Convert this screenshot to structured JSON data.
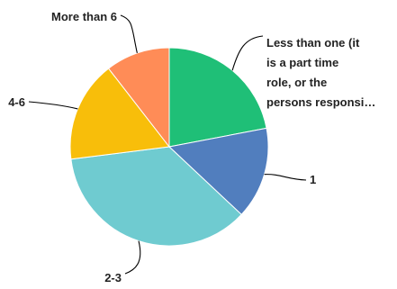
{
  "chart_data": {
    "type": "pie",
    "start_angle_deg": 0,
    "direction": "clockwise",
    "slices": [
      {
        "label_lines": [
          "Less than one (it",
          "is a part time",
          "role, or the",
          "persons responsi…"
        ],
        "value": 22,
        "color": "#1FBF77"
      },
      {
        "label_lines": [
          "1"
        ],
        "value": 15,
        "color": "#517EBE"
      },
      {
        "label_lines": [
          "2-3"
        ],
        "value": 36,
        "color": "#6FCBD0"
      },
      {
        "label_lines": [
          "4-6"
        ],
        "value": 16.5,
        "color": "#F8BE0A"
      },
      {
        "label_lines": [
          "More than 6"
        ],
        "value": 10.5,
        "color": "#FF8C57"
      }
    ]
  }
}
